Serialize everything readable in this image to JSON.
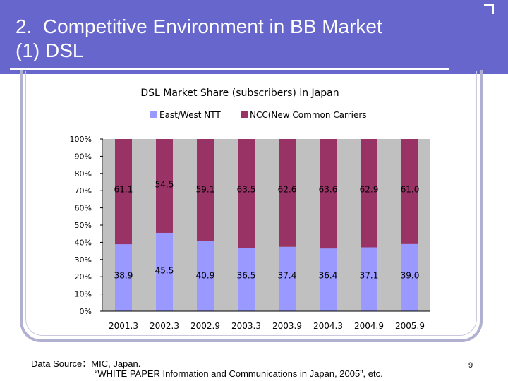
{
  "slide": {
    "title_line1": "2.  Competitive Environment in BB Market",
    "title_line2": "(1) DSL",
    "source_line1": "Data Source：MIC, Japan.",
    "source_line2": "“WHITE PAPER Information and Communications in Japan, 2005”, etc.",
    "page_number": "9"
  },
  "colors": {
    "header_bg": "#6666cc",
    "ntt": "#9999ff",
    "ncc": "#993366",
    "plot_bg": "#c0c0c0"
  },
  "chart_data": {
    "type": "bar",
    "stacked": true,
    "percent_axis": true,
    "title": "DSL Market Share (subscribers) in Japan",
    "categories": [
      "2001.3",
      "2002.3",
      "2002.9",
      "2003.3",
      "2003.9",
      "2004.3",
      "2004.9",
      "2005.9"
    ],
    "series": [
      {
        "name": "East/West NTT",
        "values": [
          38.9,
          45.5,
          40.9,
          36.5,
          37.4,
          36.4,
          37.1,
          39.0
        ],
        "labels": [
          "38.9",
          "45.5",
          "40.9",
          "36.5",
          "37.4",
          "36.4",
          "37.1",
          "39.0"
        ]
      },
      {
        "name": "NCC(New Common Carriers",
        "values": [
          61.1,
          54.5,
          59.1,
          63.5,
          62.6,
          63.6,
          62.9,
          61.0
        ],
        "labels": [
          "61.1",
          "54.5",
          "59.1",
          "63.5",
          "62.6",
          "63.6",
          "62.9",
          "61.0"
        ]
      }
    ],
    "yticks": [
      "0%",
      "10%",
      "20%",
      "30%",
      "40%",
      "50%",
      "60%",
      "70%",
      "80%",
      "90%",
      "100%"
    ],
    "ylim": [
      0,
      100
    ],
    "legend_position": "top",
    "grid": false
  }
}
